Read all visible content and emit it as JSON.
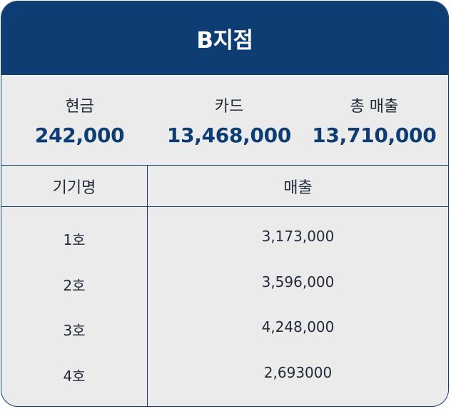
{
  "header": {
    "title": "B지점"
  },
  "summary": [
    {
      "label": "현금",
      "value": "242,000"
    },
    {
      "label": "카드",
      "value": "13,468,000"
    },
    {
      "label": "총 매출",
      "value": "13,710,000"
    }
  ],
  "table": {
    "headers": [
      "기기명",
      "매출"
    ],
    "rows": [
      {
        "device": "1호",
        "sales": "3,173,000"
      },
      {
        "device": "2호",
        "sales": "3,596,000"
      },
      {
        "device": "3호",
        "sales": "4,248,000"
      },
      {
        "device": "4호",
        "sales": "2,693000"
      }
    ]
  },
  "colors": {
    "primary": "#0d3d73",
    "panel": "#ebebeb"
  }
}
